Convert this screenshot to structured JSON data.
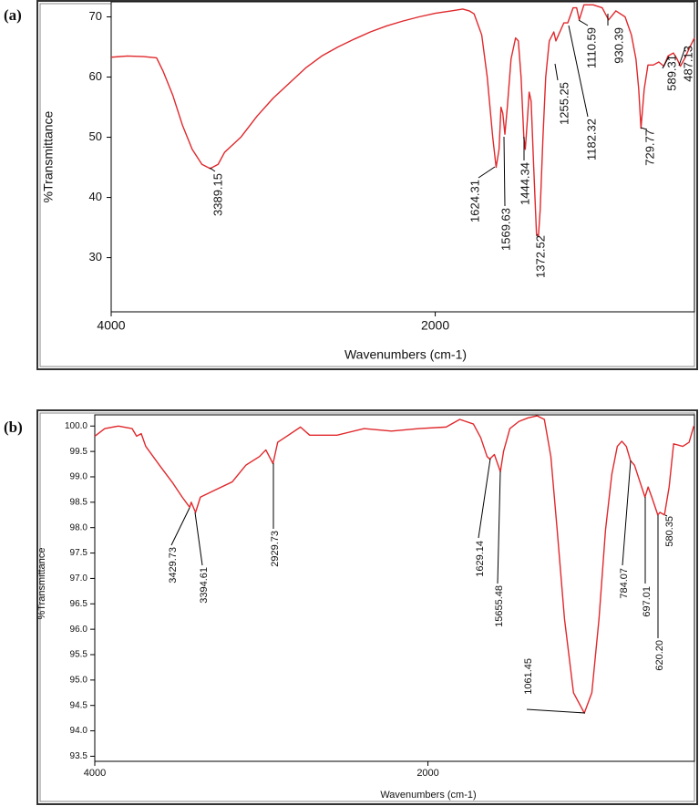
{
  "chart_data": [
    {
      "type": "line",
      "panel_label": "(a)",
      "xlabel": "Wavenumbers (cm-1)",
      "ylabel": "%Transmittance",
      "color": "#e0282c",
      "xlim": [
        4000,
        400
      ],
      "ylim": [
        21,
        72.5
      ],
      "xticks": [
        4000,
        2000
      ],
      "yticks": [
        30,
        40,
        50,
        60,
        70
      ],
      "x": [
        4000,
        3900,
        3800,
        3720,
        3680,
        3620,
        3560,
        3500,
        3440,
        3389,
        3340,
        3300,
        3200,
        3100,
        3000,
        2900,
        2800,
        2700,
        2600,
        2500,
        2400,
        2300,
        2200,
        2100,
        2000,
        1900,
        1830,
        1790,
        1760,
        1713,
        1679,
        1645,
        1624,
        1606,
        1594,
        1583,
        1570,
        1555,
        1532,
        1504,
        1487,
        1470,
        1453,
        1444,
        1431,
        1420,
        1408,
        1392,
        1375,
        1363,
        1352,
        1335,
        1318,
        1296,
        1268,
        1255,
        1239,
        1206,
        1182,
        1149,
        1127,
        1111,
        1082,
        1025,
        969,
        930,
        885,
        828,
        789,
        761,
        744,
        730,
        710,
        687,
        654,
        620,
        589,
        563,
        530,
        507,
        487,
        462,
        428,
        400
      ],
      "values": [
        63.3,
        63.5,
        63.4,
        63.2,
        61,
        57,
        52,
        48,
        45.5,
        44.8,
        45.5,
        47.5,
        50,
        53.5,
        56.5,
        59,
        61.5,
        63.5,
        65,
        66.3,
        67.5,
        68.5,
        69.3,
        70,
        70.6,
        71,
        71.3,
        71,
        70.5,
        67,
        60,
        50,
        45,
        48,
        55,
        54,
        50.5,
        55,
        63,
        66.5,
        66,
        60,
        50,
        48,
        53,
        57.5,
        56,
        45,
        34,
        33.5,
        38,
        50,
        60,
        66,
        67.5,
        66,
        67,
        69,
        69,
        71.5,
        71.5,
        69.5,
        72,
        72,
        71.5,
        69.5,
        71,
        70,
        67,
        63,
        58,
        51.5,
        58,
        62,
        62,
        62.5,
        61.8,
        63.5,
        64,
        63,
        61.8,
        63,
        65,
        66.5
      ],
      "annotations": [
        "3389.15",
        "1624.31",
        "1569.63",
        "1444.34",
        "1372.52",
        "1255.25",
        "1182.32",
        "1110.59",
        "930.39",
        "729.77",
        "589.31",
        "487.13"
      ]
    },
    {
      "type": "line",
      "panel_label": "(b)",
      "xlabel": "Wavenumbers (cm-1)",
      "ylabel": "%Transmittance",
      "color": "#e0282c",
      "xlim": [
        4000,
        400
      ],
      "ylim": [
        93.4,
        100.22
      ],
      "xticks": [
        4000,
        2000
      ],
      "yticks": [
        {
          "value": 100,
          "label": "100.0"
        },
        99.5,
        {
          "value": 99,
          "label": "99.0"
        },
        98.5,
        {
          "value": 98,
          "label": "98.0"
        },
        97.5,
        {
          "value": 97,
          "label": "97.0"
        },
        96.5,
        {
          "value": 96,
          "label": "96.0"
        },
        95.5,
        {
          "value": 95,
          "label": "95.0"
        },
        94.5,
        {
          "value": 94,
          "label": "94.0"
        },
        93.5
      ],
      "x": [
        4000,
        3940,
        3858,
        3776,
        3749,
        3721,
        3694,
        3612,
        3530,
        3475,
        3430,
        3421,
        3395,
        3366,
        3284,
        3175,
        3093,
        3011,
        2973,
        2930,
        2902,
        2847,
        2765,
        2710,
        2546,
        2383,
        2219,
        2055,
        1891,
        1809,
        1727,
        1683,
        1645,
        1629,
        1601,
        1565,
        1546,
        1508,
        1454,
        1399,
        1344,
        1301,
        1262,
        1224,
        1180,
        1126,
        1061,
        1016,
        973,
        934,
        896,
        863,
        836,
        809,
        784,
        760,
        697,
        678,
        656,
        620,
        607,
        580,
        552,
        525,
        470,
        432,
        404
      ],
      "values": [
        99.8,
        99.95,
        100.0,
        99.95,
        99.8,
        99.85,
        99.6,
        99.23,
        98.87,
        98.6,
        98.4,
        98.5,
        98.3,
        98.6,
        98.73,
        98.9,
        99.23,
        99.4,
        99.53,
        99.26,
        99.68,
        99.8,
        99.98,
        99.82,
        99.82,
        99.95,
        99.9,
        99.95,
        99.98,
        100.13,
        100.04,
        99.77,
        99.4,
        99.35,
        99.44,
        99.1,
        99.5,
        99.95,
        100.09,
        100.16,
        100.2,
        100.13,
        99.4,
        97.95,
        96.2,
        94.75,
        94.35,
        94.75,
        96.2,
        97.95,
        99.05,
        99.6,
        99.7,
        99.6,
        99.32,
        99.23,
        98.6,
        98.8,
        98.6,
        98.25,
        98.3,
        98.25,
        98.8,
        99.65,
        99.6,
        99.68,
        100.0
      ],
      "annotations": [
        "3429.73",
        "3394.61",
        "2929.73",
        "1629.14",
        "15655.48",
        "1061.45",
        "784.07",
        "697.01",
        "620.20",
        "580.35"
      ]
    }
  ]
}
